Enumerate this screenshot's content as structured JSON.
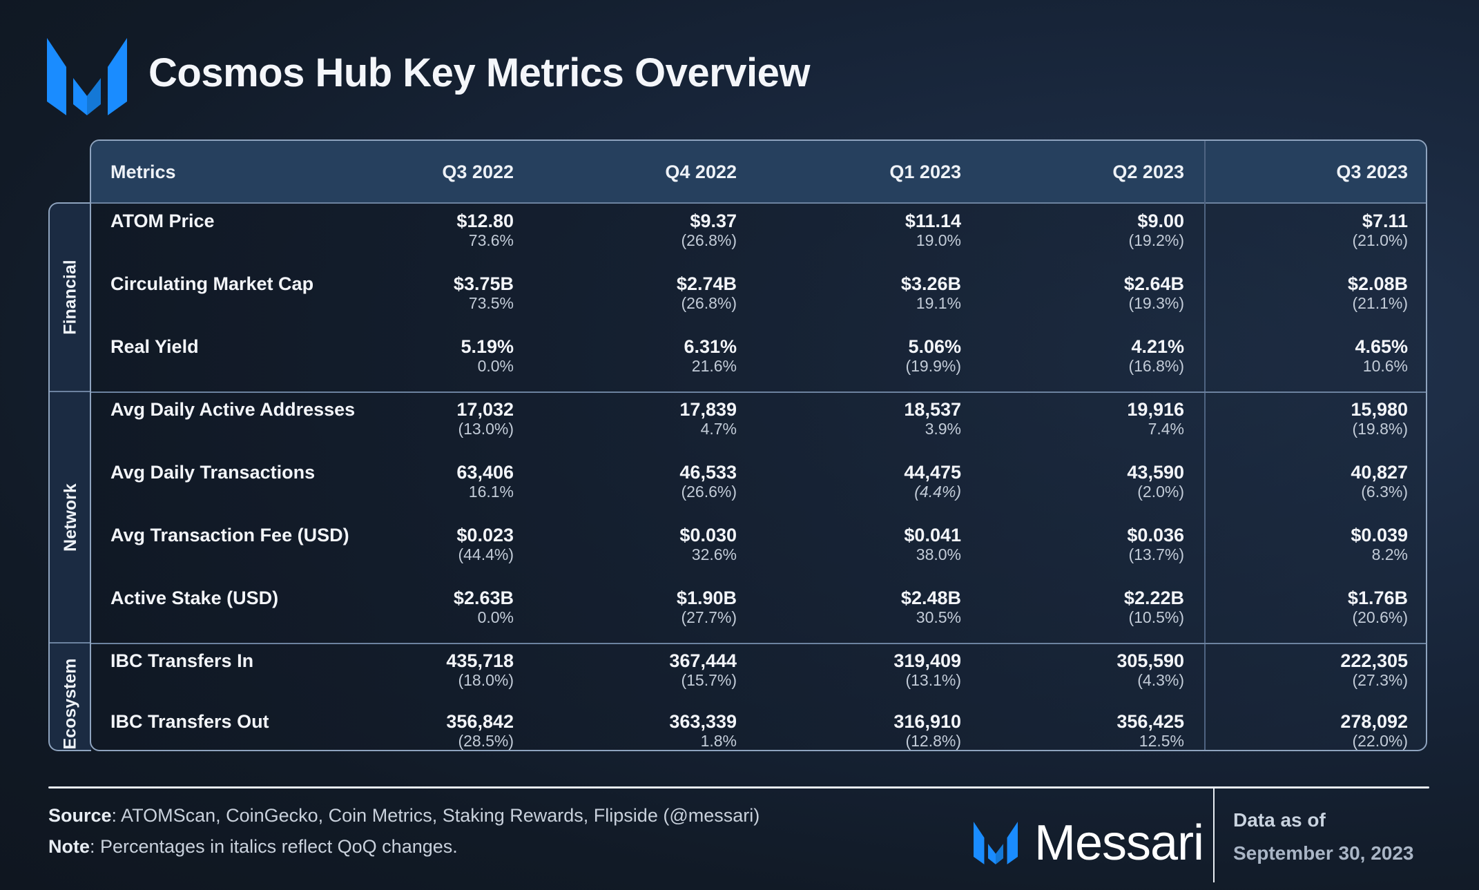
{
  "title": "Cosmos Hub Key Metrics Overview",
  "colors": {
    "brand_blue": "#1a8cff",
    "header_bg": "#26405e"
  },
  "table": {
    "columns": [
      "Metrics",
      "Q3 2022",
      "Q4 2022",
      "Q1 2023",
      "Q2 2023",
      "Q3 2023"
    ],
    "groups": [
      {
        "name": "Financial",
        "rows": [
          {
            "metric": "ATOM Price",
            "values": [
              [
                "$12.80",
                "73.6%"
              ],
              [
                "$9.37",
                "(26.8%)"
              ],
              [
                "$11.14",
                "19.0%"
              ],
              [
                "$9.00",
                "(19.2%)"
              ],
              [
                "$7.11",
                "(21.0%)"
              ]
            ]
          },
          {
            "metric": "Circulating Market Cap",
            "values": [
              [
                "$3.75B",
                "73.5%"
              ],
              [
                "$2.74B",
                "(26.8%)"
              ],
              [
                "$3.26B",
                "19.1%"
              ],
              [
                "$2.64B",
                "(19.3%)"
              ],
              [
                "$2.08B",
                "(21.1%)"
              ]
            ]
          },
          {
            "metric": "Real Yield",
            "values": [
              [
                "5.19%",
                "0.0%"
              ],
              [
                "6.31%",
                "21.6%"
              ],
              [
                "5.06%",
                "(19.9%)"
              ],
              [
                "4.21%",
                "(16.8%)"
              ],
              [
                "4.65%",
                "10.6%"
              ]
            ]
          }
        ]
      },
      {
        "name": "Network",
        "rows": [
          {
            "metric": "Avg Daily Active Addresses",
            "values": [
              [
                "17,032",
                "(13.0%)"
              ],
              [
                "17,839",
                "4.7%"
              ],
              [
                "18,537",
                "3.9%"
              ],
              [
                "19,916",
                "7.4%"
              ],
              [
                "15,980",
                "(19.8%)"
              ]
            ]
          },
          {
            "metric": "Avg Daily Transactions",
            "values": [
              [
                "63,406",
                "16.1%"
              ],
              [
                "46,533",
                "(26.6%)"
              ],
              [
                "44,475",
                "(4.4%)",
                "italic"
              ],
              [
                "43,590",
                "(2.0%)"
              ],
              [
                "40,827",
                "(6.3%)"
              ]
            ]
          },
          {
            "metric": "Avg Transaction Fee (USD)",
            "values": [
              [
                "$0.023",
                "(44.4%)"
              ],
              [
                "$0.030",
                "32.6%"
              ],
              [
                "$0.041",
                "38.0%"
              ],
              [
                "$0.036",
                "(13.7%)"
              ],
              [
                "$0.039",
                "8.2%"
              ]
            ]
          },
          {
            "metric": "Active Stake (USD)",
            "values": [
              [
                "$2.63B",
                "0.0%"
              ],
              [
                "$1.90B",
                "(27.7%)"
              ],
              [
                "$2.48B",
                "30.5%"
              ],
              [
                "$2.22B",
                "(10.5%)"
              ],
              [
                "$1.76B",
                "(20.6%)"
              ]
            ]
          }
        ]
      },
      {
        "name": "Ecosystem",
        "rows": [
          {
            "metric": "IBC Transfers In",
            "values": [
              [
                "435,718",
                "(18.0%)"
              ],
              [
                "367,444",
                "(15.7%)"
              ],
              [
                "319,409",
                "(13.1%)"
              ],
              [
                "305,590",
                "(4.3%)"
              ],
              [
                "222,305",
                "(27.3%)"
              ]
            ]
          },
          {
            "metric": "IBC Transfers Out",
            "values": [
              [
                "356,842",
                "(28.5%)"
              ],
              [
                "363,339",
                "1.8%"
              ],
              [
                "316,910",
                "(12.8%)"
              ],
              [
                "356,425",
                "12.5%"
              ],
              [
                "278,092",
                "(22.0%)"
              ]
            ]
          }
        ]
      }
    ]
  },
  "footer": {
    "source_label": "Source",
    "source_text": ": ATOMScan, CoinGecko, Coin Metrics, Staking Rewards, Flipside (@messari)",
    "note_label": "Note",
    "note_text": ": Percentages in italics reflect QoQ changes.",
    "brand": "Messari",
    "data_as_of_label": "Data as of",
    "date": "September 30, 2023"
  }
}
